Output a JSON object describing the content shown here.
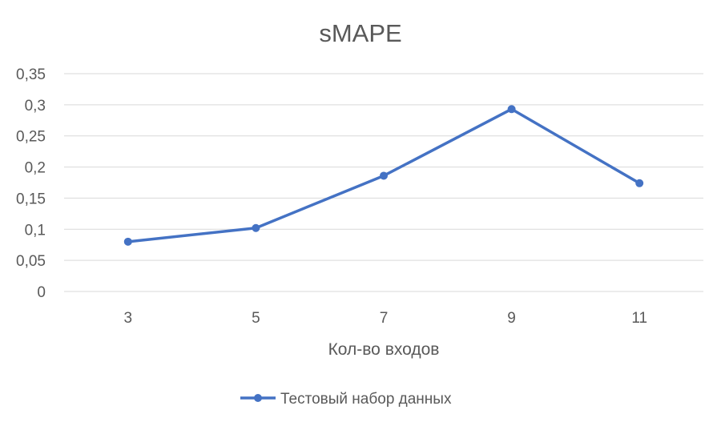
{
  "chart_data": {
    "type": "line",
    "title": "sMAPE",
    "xlabel": "Кол-во входов",
    "ylabel": "",
    "categories": [
      "3",
      "5",
      "7",
      "9",
      "11"
    ],
    "y_ticks": [
      "0",
      "0,05",
      "0,1",
      "0,15",
      "0,2",
      "0,25",
      "0,3",
      "0,35"
    ],
    "ylim": [
      0,
      0.35
    ],
    "grid": true,
    "legend_position": "bottom",
    "series": [
      {
        "name": "Тестовый набор данных",
        "values": [
          0.08,
          0.102,
          0.186,
          0.293,
          0.174
        ],
        "color": "#4472c4"
      }
    ]
  }
}
